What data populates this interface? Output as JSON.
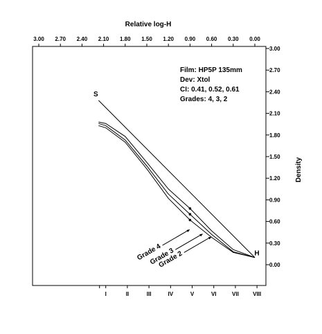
{
  "chart_data": {
    "type": "line",
    "top_axis_title": "Relative log-H",
    "right_axis_title": "Density",
    "top_ticks": [
      "3.00",
      "2.70",
      "2.40",
      "2.10",
      "1.80",
      "1.50",
      "1.20",
      "0.90",
      "0.60",
      "0.30",
      "0.00"
    ],
    "top_tick_values": [
      3.0,
      2.7,
      2.4,
      2.1,
      1.8,
      1.5,
      1.2,
      0.9,
      0.6,
      0.3,
      0.0
    ],
    "right_ticks": [
      "3.00",
      "2.70",
      "2.40",
      "2.10",
      "1.80",
      "1.50",
      "1.20",
      "0.90",
      "0.60",
      "0.30",
      "0.00"
    ],
    "right_tick_values": [
      3.0,
      2.7,
      2.4,
      2.1,
      1.8,
      1.5,
      1.2,
      0.9,
      0.6,
      0.3,
      0.0
    ],
    "xlim": [
      3.0,
      0.0
    ],
    "ylim": [
      -0.3,
      3.0
    ],
    "bottom_zone_ticks": [
      "I",
      "II",
      "III",
      "IV",
      "V",
      "VI",
      "VII",
      "VIII"
    ],
    "bottom_zone_positions": [
      2.07,
      1.77,
      1.47,
      1.17,
      0.87,
      0.57,
      0.27,
      -0.03
    ],
    "info_lines": [
      "Film: HP5P 135mm",
      "Dev: Xtol",
      "CI: 0.41, 0.52, 0.61",
      "Grades: 4, 3, 2"
    ],
    "reference_line": {
      "start_label": "S",
      "end_label": "H",
      "points": [
        {
          "x": 2.17,
          "y": 2.28
        },
        {
          "x": 0.0,
          "y": 0.1
        }
      ]
    },
    "series": [
      {
        "name": "Grade 4",
        "points": [
          {
            "x": 2.17,
            "y": 1.93
          },
          {
            "x": 2.07,
            "y": 1.9
          },
          {
            "x": 1.8,
            "y": 1.7
          },
          {
            "x": 1.5,
            "y": 1.33
          },
          {
            "x": 1.2,
            "y": 0.92
          },
          {
            "x": 0.9,
            "y": 0.62
          },
          {
            "x": 0.6,
            "y": 0.38
          },
          {
            "x": 0.3,
            "y": 0.17
          },
          {
            "x": 0.0,
            "y": 0.1
          }
        ],
        "marker": {
          "x": 0.9,
          "y": 0.62
        }
      },
      {
        "name": "Grade 3",
        "points": [
          {
            "x": 2.17,
            "y": 1.96
          },
          {
            "x": 2.07,
            "y": 1.93
          },
          {
            "x": 1.8,
            "y": 1.73
          },
          {
            "x": 1.5,
            "y": 1.37
          },
          {
            "x": 1.2,
            "y": 0.98
          },
          {
            "x": 0.9,
            "y": 0.7
          },
          {
            "x": 0.6,
            "y": 0.42
          },
          {
            "x": 0.3,
            "y": 0.18
          },
          {
            "x": 0.0,
            "y": 0.1
          }
        ],
        "marker": {
          "x": 0.9,
          "y": 0.7
        }
      },
      {
        "name": "Grade 2",
        "points": [
          {
            "x": 2.17,
            "y": 1.98
          },
          {
            "x": 2.07,
            "y": 1.96
          },
          {
            "x": 1.8,
            "y": 1.78
          },
          {
            "x": 1.5,
            "y": 1.42
          },
          {
            "x": 1.2,
            "y": 1.05
          },
          {
            "x": 0.9,
            "y": 0.78
          },
          {
            "x": 0.6,
            "y": 0.47
          },
          {
            "x": 0.3,
            "y": 0.21
          },
          {
            "x": 0.0,
            "y": 0.1
          }
        ],
        "marker": {
          "x": 0.9,
          "y": 0.78
        }
      }
    ],
    "grade_pointers": [
      {
        "label": "Grade 4",
        "target": {
          "x": 0.9,
          "y": 0.49
        }
      },
      {
        "label": "Grade 3",
        "target": {
          "x": 0.72,
          "y": 0.43
        }
      },
      {
        "label": "Grade 2",
        "target": {
          "x": 0.6,
          "y": 0.39
        }
      }
    ]
  }
}
